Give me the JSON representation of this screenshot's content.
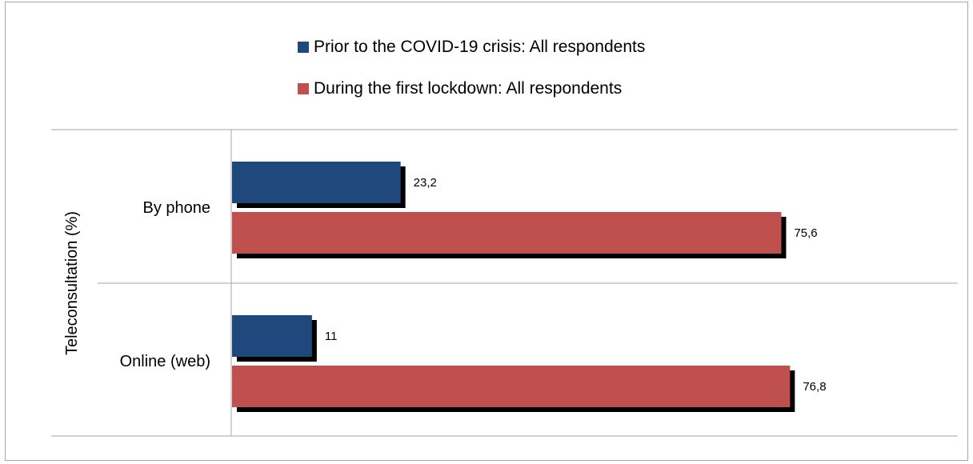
{
  "chart_data": {
    "type": "bar",
    "orientation": "horizontal",
    "categories": [
      "By phone",
      "Online (web)"
    ],
    "ylabel": "Teleconsultation (%)",
    "series": [
      {
        "name": "Prior to the COVID-19 crisis: All respondents",
        "color": "#1f497d",
        "values": [
          23.2,
          11
        ],
        "value_labels": [
          "23,2",
          "11"
        ]
      },
      {
        "name": "During the first lockdown: All respondents",
        "color": "#c0504d",
        "values": [
          75.6,
          76.8
        ],
        "value_labels": [
          "75,6",
          "76,8"
        ]
      }
    ],
    "legend_position": "top",
    "grid": false
  }
}
